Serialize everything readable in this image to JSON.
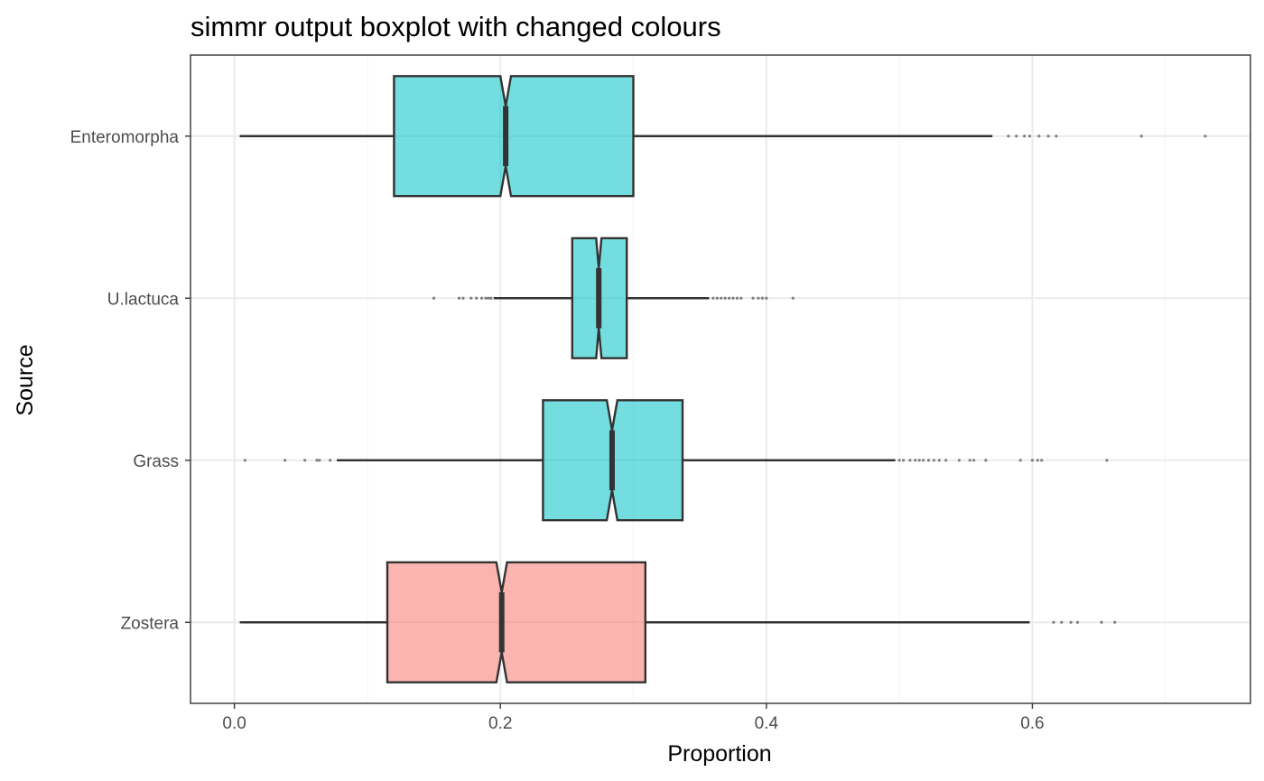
{
  "chart_data": {
    "type": "boxplot",
    "orientation": "horizontal",
    "notched": true,
    "title": "simmr output boxplot with changed colours",
    "xlabel": "Proportion",
    "ylabel": "Source",
    "xlim": [
      -0.033,
      0.764
    ],
    "x_ticks": [
      {
        "value": 0.0,
        "label": "0.0"
      },
      {
        "value": 0.2,
        "label": "0.2"
      },
      {
        "value": 0.4,
        "label": "0.4"
      },
      {
        "value": 0.6,
        "label": "0.6"
      }
    ],
    "grid": true,
    "legend": "none",
    "colors": {
      "teal_fill": "#00C1C5",
      "salmon_fill": "#F8766D",
      "box_stroke": "#333333",
      "grid_major": "#ebebeb",
      "grid_minor": "#f4f4f4",
      "panel_border": "#333333"
    },
    "categories": [
      "Enteromorpha",
      "U.lactuca",
      "Grass",
      "Zostera"
    ],
    "boxes": [
      {
        "category": "Enteromorpha",
        "fill": "teal",
        "whisker_low": 0.004,
        "q1": 0.12,
        "notch_low": 0.2,
        "median": 0.204,
        "notch_high": 0.208,
        "q3": 0.3,
        "whisker_high": 0.57,
        "outliers": [
          0.582,
          0.588,
          0.594,
          0.598,
          0.605,
          0.612,
          0.618,
          0.682,
          0.73
        ]
      },
      {
        "category": "U.lactuca",
        "fill": "teal",
        "whisker_low": 0.195,
        "q1": 0.254,
        "notch_low": 0.272,
        "median": 0.274,
        "notch_high": 0.276,
        "q3": 0.295,
        "whisker_high": 0.357,
        "outliers": [
          0.15,
          0.169,
          0.172,
          0.178,
          0.182,
          0.186,
          0.189,
          0.191,
          0.193,
          0.36,
          0.363,
          0.366,
          0.369,
          0.372,
          0.375,
          0.378,
          0.381,
          0.39,
          0.394,
          0.397,
          0.4,
          0.42
        ]
      },
      {
        "category": "Grass",
        "fill": "teal",
        "whisker_low": 0.077,
        "q1": 0.232,
        "notch_low": 0.28,
        "median": 0.284,
        "notch_high": 0.288,
        "q3": 0.337,
        "whisker_high": 0.497,
        "outliers": [
          0.008,
          0.038,
          0.053,
          0.062,
          0.064,
          0.072,
          0.5,
          0.503,
          0.508,
          0.512,
          0.515,
          0.518,
          0.522,
          0.526,
          0.53,
          0.535,
          0.545,
          0.553,
          0.556,
          0.565,
          0.591,
          0.6,
          0.604,
          0.607,
          0.656
        ]
      },
      {
        "category": "Zostera",
        "fill": "salmon",
        "whisker_low": 0.004,
        "q1": 0.115,
        "notch_low": 0.197,
        "median": 0.201,
        "notch_high": 0.205,
        "q3": 0.309,
        "whisker_high": 0.598,
        "outliers": [
          0.616,
          0.622,
          0.629,
          0.634,
          0.652,
          0.662
        ]
      }
    ]
  }
}
